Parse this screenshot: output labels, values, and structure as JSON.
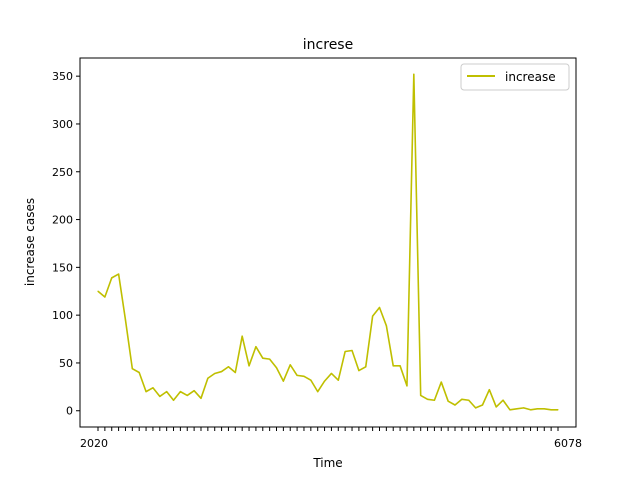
{
  "chart_data": {
    "type": "line",
    "title": "increse",
    "xlabel": "Time",
    "ylabel": "increase cases",
    "ylim": [
      -17,
      369
    ],
    "yticks": [
      0,
      50,
      100,
      150,
      200,
      250,
      300,
      350
    ],
    "grid": false,
    "legend_position": "top-right",
    "x_tick_labels_visible": {
      "left": "2020",
      "right": "6078"
    },
    "series": [
      {
        "name": "increase",
        "color": "#bfbf00",
        "values": [
          125,
          119,
          139,
          143,
          95,
          44,
          40,
          20,
          24,
          15,
          20,
          11,
          20,
          16,
          21,
          13,
          34,
          39,
          41,
          46,
          40,
          78,
          47,
          67,
          55,
          54,
          45,
          31,
          48,
          37,
          36,
          32,
          20,
          31,
          39,
          32,
          62,
          63,
          42,
          46,
          99,
          108,
          89,
          47,
          47,
          26,
          352,
          16,
          12,
          11,
          30,
          10,
          6,
          12,
          11,
          3,
          6,
          22,
          4,
          11,
          1,
          2,
          3,
          1,
          2,
          2,
          1,
          1
        ]
      }
    ]
  }
}
